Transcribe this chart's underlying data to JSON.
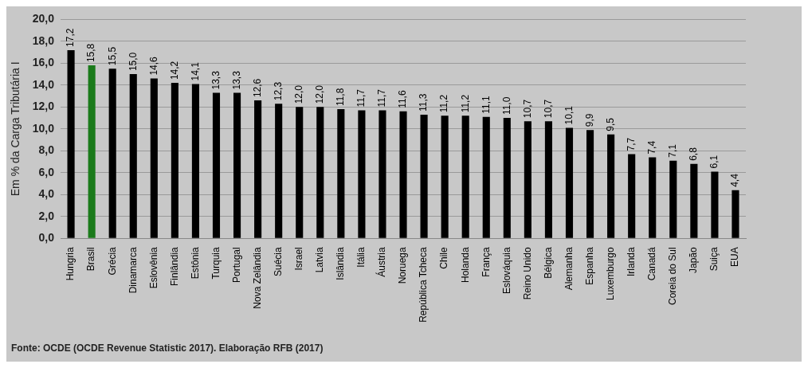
{
  "chart_data": {
    "type": "bar",
    "ylabel": "Em % da Carga Tributária I",
    "categories": [
      "Hungria",
      "Brasil",
      "Grécia",
      "Dinamarca",
      "Eslovênia",
      "Finlândia",
      "Estônia",
      "Turquia",
      "Portugal",
      "Nova Zelândia",
      "Suécia",
      "Israel",
      "Latvia",
      "Islândia",
      "Itália",
      "Áustria",
      "Noruega",
      "República Tcheca",
      "Chile",
      "Holanda",
      "França",
      "Eslováquia",
      "Reino Unido",
      "Bélgica",
      "Alemanha",
      "Espanha",
      "Luxemburgo",
      "Irlanda",
      "Canadá",
      "Coreia do Sul",
      "Japão",
      "Suiça",
      "EUA"
    ],
    "values": [
      17.2,
      15.8,
      15.5,
      15.0,
      14.6,
      14.2,
      14.1,
      13.3,
      13.3,
      12.6,
      12.3,
      12.0,
      12.0,
      11.8,
      11.7,
      11.7,
      11.6,
      11.3,
      11.2,
      11.2,
      11.1,
      11.0,
      10.7,
      10.7,
      10.1,
      9.9,
      9.5,
      7.7,
      7.4,
      7.1,
      6.8,
      6.1,
      4.4
    ],
    "colors": [
      "#000000",
      "#1a7a1a",
      "#000000",
      "#000000",
      "#000000",
      "#000000",
      "#000000",
      "#000000",
      "#000000",
      "#000000",
      "#000000",
      "#000000",
      "#000000",
      "#000000",
      "#000000",
      "#000000",
      "#000000",
      "#000000",
      "#000000",
      "#000000",
      "#000000",
      "#000000",
      "#000000",
      "#000000",
      "#000000",
      "#000000",
      "#000000",
      "#000000",
      "#000000",
      "#000000",
      "#000000",
      "#000000",
      "#000000"
    ],
    "value_labels": [
      "17,2",
      "15,8",
      "15,5",
      "15,0",
      "14,6",
      "14,2",
      "14,1",
      "13,3",
      "13,3",
      "12,6",
      "12,3",
      "12,0",
      "12,0",
      "11,8",
      "11,7",
      "11,7",
      "11,6",
      "11,3",
      "11,2",
      "11,2",
      "11,1",
      "11,0",
      "10,7",
      "10,7",
      "10,1",
      "9,9",
      "9,5",
      "7,7",
      "7,4",
      "7,1",
      "6,8",
      "6,1",
      "4,4"
    ],
    "ylim": [
      0,
      20
    ],
    "yticks": [
      {
        "value": 0,
        "label": "0,0"
      },
      {
        "value": 2,
        "label": "2,0"
      },
      {
        "value": 4,
        "label": "4,0"
      },
      {
        "value": 6,
        "label": "6,0"
      },
      {
        "value": 8,
        "label": "8,0"
      },
      {
        "value": 10,
        "label": "10,0"
      },
      {
        "value": 12,
        "label": "12,0"
      },
      {
        "value": 14,
        "label": "14,0"
      },
      {
        "value": 16,
        "label": "16,0"
      },
      {
        "value": 18,
        "label": "18,0"
      },
      {
        "value": 20,
        "label": "20,0"
      }
    ],
    "grid": "y",
    "legend": false,
    "annotations": [
      "Fonte: OCDE (OCDE Revenue Statistic 2017). Elaboração RFB (2017)"
    ]
  }
}
